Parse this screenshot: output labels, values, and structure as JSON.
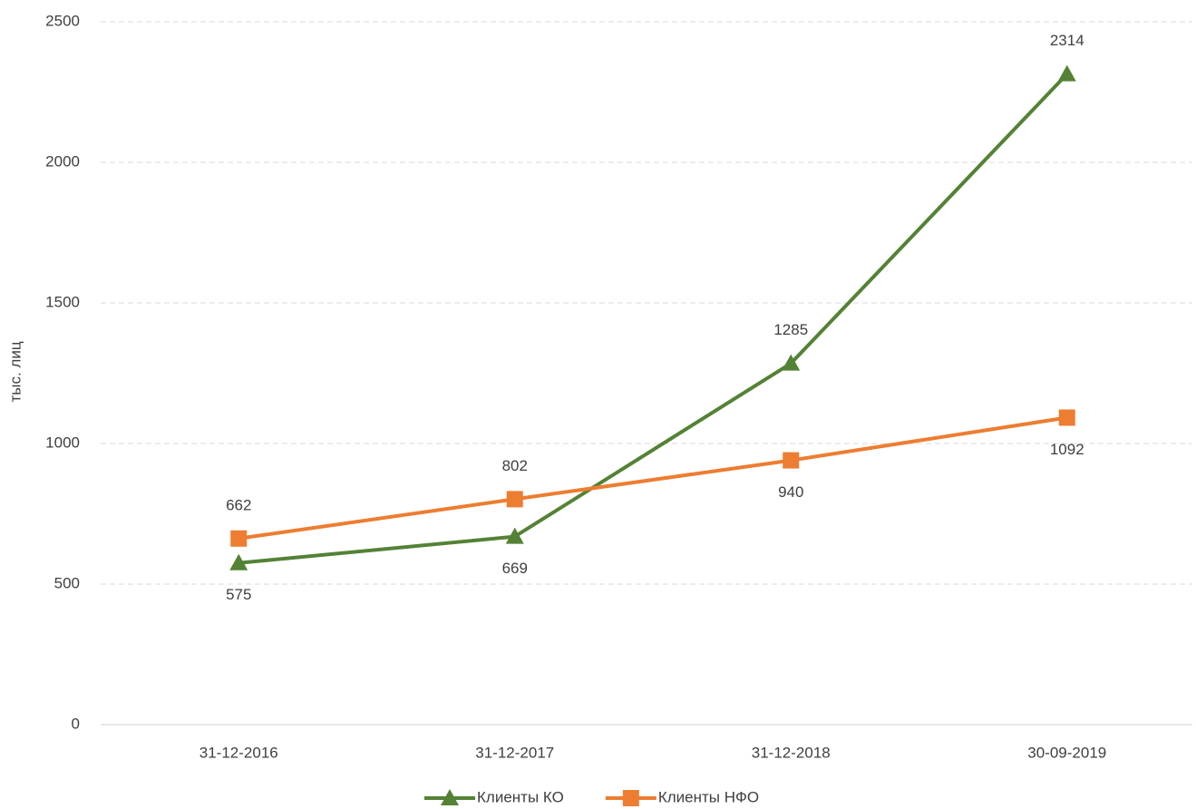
{
  "chart_data": {
    "type": "line",
    "y_label": "тыс. лиц",
    "categories": [
      "31-12-2016",
      "31-12-2017",
      "31-12-2018",
      "30-09-2019"
    ],
    "series": [
      {
        "name": "Клиенты КО",
        "color": "#548235",
        "marker": "triangle",
        "values": [
          575,
          669,
          1285,
          2314
        ]
      },
      {
        "name": "Клиенты НФО",
        "color": "#ed7d31",
        "marker": "square",
        "values": [
          662,
          802,
          940,
          1092
        ]
      }
    ],
    "ylim": [
      0,
      2500
    ],
    "yticks": [
      0,
      500,
      1000,
      1500,
      2000,
      2500
    ],
    "grid": true,
    "legend": "bottom"
  }
}
